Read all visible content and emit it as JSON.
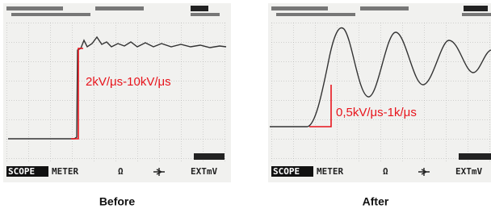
{
  "panels": [
    {
      "annotation": "2kV/μs-10kV/μs",
      "caption": "Before",
      "menu": [
        "SCOPE",
        "METER",
        "Ω",
        "EXTmV"
      ]
    },
    {
      "annotation": "0,5kV/μs-1k/μs",
      "caption": "After",
      "menu": [
        "SCOPE",
        "METER",
        "Ω",
        "EXTmV"
      ]
    }
  ]
}
